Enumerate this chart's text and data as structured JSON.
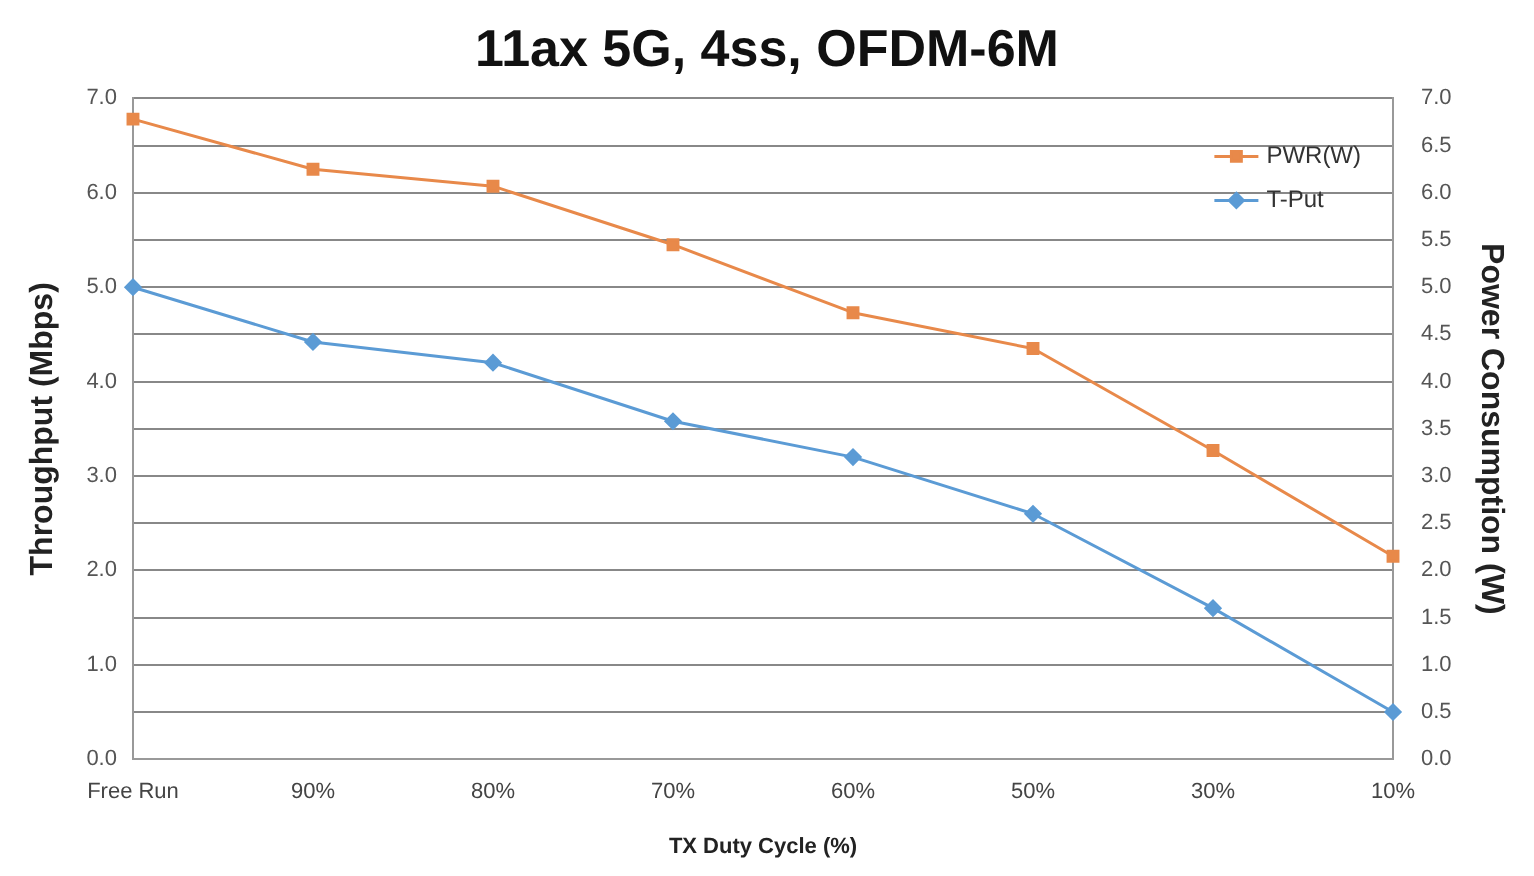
{
  "chart_data": {
    "type": "line",
    "title": "11ax 5G, 4ss, OFDM-6M",
    "xlabel": "TX Duty Cycle (%)",
    "ylabel": "Throughput (Mbps)",
    "y2label": "Power Consumption (W)",
    "categories": [
      "Free Run",
      "90%",
      "80%",
      "70%",
      "60%",
      "50%",
      "30%",
      "10%"
    ],
    "series": [
      {
        "name": "PWR(W)",
        "color": "#e8894a",
        "axis": "y2",
        "marker": "square",
        "values": [
          6.78,
          6.25,
          6.07,
          5.45,
          4.73,
          4.35,
          3.27,
          2.15
        ]
      },
      {
        "name": "T-Put",
        "color": "#5b9bd5",
        "marker": "diamond",
        "values": [
          5.0,
          4.42,
          4.2,
          3.58,
          3.2,
          2.6,
          1.6,
          0.5
        ]
      }
    ],
    "ylim": [
      0,
      7
    ],
    "yticks": [
      {
        "value": 0,
        "label": "0.0"
      },
      {
        "value": 0.5,
        "label": null
      },
      {
        "value": 1,
        "label": "1.0"
      },
      {
        "value": 1.5,
        "label": null
      },
      {
        "value": 2,
        "label": "2.0"
      },
      {
        "value": 2.5,
        "label": null
      },
      {
        "value": 3,
        "label": "3.0"
      },
      {
        "value": 3.5,
        "label": null
      },
      {
        "value": 4,
        "label": "4.0"
      },
      {
        "value": 4.5,
        "label": null
      },
      {
        "value": 5,
        "label": "5.0"
      },
      {
        "value": 5.5,
        "label": null
      },
      {
        "value": 6,
        "label": "6.0"
      },
      {
        "value": 6.5,
        "label": null
      },
      {
        "value": 7,
        "label": "7.0"
      }
    ],
    "y2lim": [
      0,
      7
    ],
    "y2ticks": [
      {
        "value": 0,
        "label": "0.0"
      },
      {
        "value": 0.5,
        "label": "0.5"
      },
      {
        "value": 1,
        "label": "1.0"
      },
      {
        "value": 1.5,
        "label": "1.5"
      },
      {
        "value": 2,
        "label": "2.0"
      },
      {
        "value": 2.5,
        "label": "2.5"
      },
      {
        "value": 3,
        "label": "3.0"
      },
      {
        "value": 3.5,
        "label": "3.5"
      },
      {
        "value": 4,
        "label": "4.0"
      },
      {
        "value": 4.5,
        "label": "4.5"
      },
      {
        "value": 5,
        "label": "5.0"
      },
      {
        "value": 5.5,
        "label": "5.5"
      },
      {
        "value": 6,
        "label": "6.0"
      },
      {
        "value": 6.5,
        "label": "6.5"
      },
      {
        "value": 7,
        "label": "7.0"
      }
    ],
    "grid": "y",
    "legend": "top right",
    "line_style": "solid"
  }
}
